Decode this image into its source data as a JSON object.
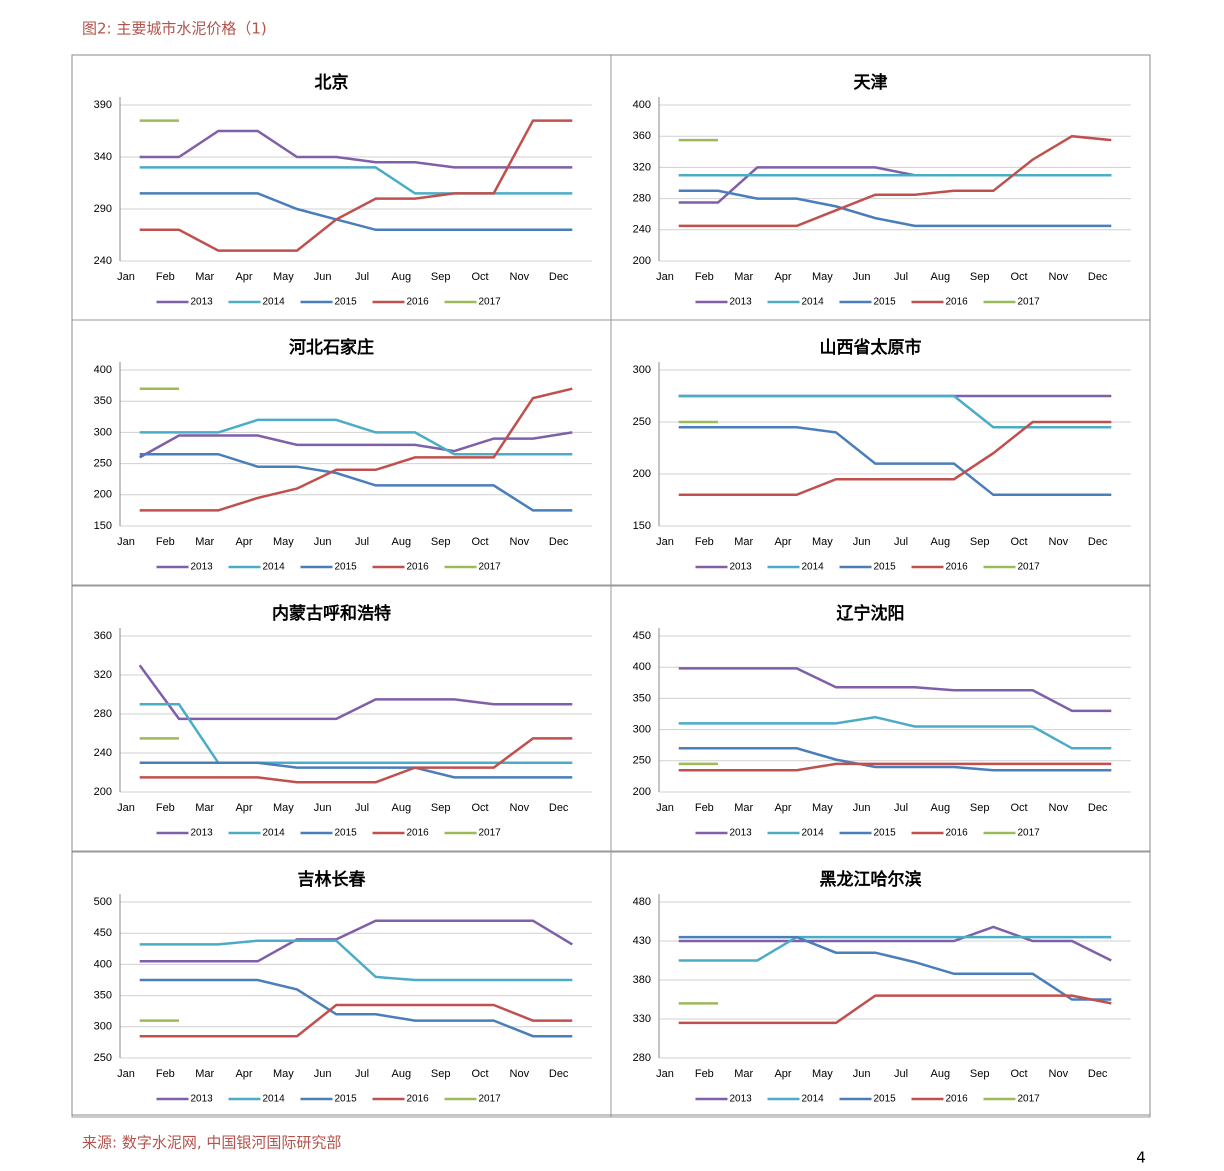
{
  "header": "图2: 主要城市水泥价格（1)",
  "footer": "来源: 数字水泥网, 中国银河国际研究部",
  "page_number": "4",
  "chart_data": [
    {
      "type": "line",
      "title": "北京",
      "categories": [
        "Jan",
        "Feb",
        "Mar",
        "Apr",
        "May",
        "Jun",
        "Jul",
        "Aug",
        "Sep",
        "Oct",
        "Nov",
        "Dec"
      ],
      "ylim": [
        240,
        390
      ],
      "yticks": [
        240,
        290,
        340,
        390
      ],
      "grid": true,
      "legend": "bottom",
      "series": [
        {
          "name": "2013",
          "color": "#7f5fa8",
          "values": [
            340,
            340,
            365,
            365,
            340,
            340,
            335,
            335,
            330,
            330,
            330,
            330
          ]
        },
        {
          "name": "2014",
          "color": "#4bacc6",
          "values": [
            330,
            330,
            330,
            330,
            330,
            330,
            330,
            305,
            305,
            305,
            305,
            305
          ]
        },
        {
          "name": "2015",
          "color": "#4a7ebb",
          "values": [
            305,
            305,
            305,
            305,
            290,
            280,
            270,
            270,
            270,
            270,
            270,
            270
          ]
        },
        {
          "name": "2016",
          "color": "#c0504d",
          "values": [
            270,
            270,
            250,
            250,
            250,
            280,
            300,
            300,
            305,
            305,
            375,
            375
          ]
        },
        {
          "name": "2017",
          "color": "#9bbb59",
          "values": [
            375,
            375,
            null,
            null,
            null,
            null,
            null,
            null,
            null,
            null,
            null,
            null
          ]
        }
      ]
    },
    {
      "type": "line",
      "title": "天津",
      "categories": [
        "Jan",
        "Feb",
        "Mar",
        "Apr",
        "May",
        "Jun",
        "Jul",
        "Aug",
        "Sep",
        "Oct",
        "Nov",
        "Dec"
      ],
      "ylim": [
        200,
        400
      ],
      "yticks": [
        200,
        240,
        280,
        320,
        360,
        400
      ],
      "grid": true,
      "legend": "bottom",
      "series": [
        {
          "name": "2013",
          "color": "#7f5fa8",
          "values": [
            275,
            275,
            320,
            320,
            320,
            320,
            310,
            310,
            310,
            310,
            310,
            310
          ]
        },
        {
          "name": "2014",
          "color": "#4bacc6",
          "values": [
            310,
            310,
            310,
            310,
            310,
            310,
            310,
            310,
            310,
            310,
            310,
            310
          ]
        },
        {
          "name": "2015",
          "color": "#4a7ebb",
          "values": [
            290,
            290,
            280,
            280,
            270,
            255,
            245,
            245,
            245,
            245,
            245,
            245
          ]
        },
        {
          "name": "2016",
          "color": "#c0504d",
          "values": [
            245,
            245,
            245,
            245,
            265,
            285,
            285,
            290,
            290,
            330,
            360,
            355
          ]
        },
        {
          "name": "2017",
          "color": "#9bbb59",
          "values": [
            355,
            355,
            null,
            null,
            null,
            null,
            null,
            null,
            null,
            null,
            null,
            null
          ]
        }
      ]
    },
    {
      "type": "line",
      "title": "河北石家庄",
      "categories": [
        "Jan",
        "Feb",
        "Mar",
        "Apr",
        "May",
        "Jun",
        "Jul",
        "Aug",
        "Sep",
        "Oct",
        "Nov",
        "Dec"
      ],
      "ylim": [
        150,
        400
      ],
      "yticks": [
        150,
        200,
        250,
        300,
        350,
        400
      ],
      "grid": true,
      "legend": "bottom",
      "series": [
        {
          "name": "2013",
          "color": "#7f5fa8",
          "values": [
            260,
            295,
            295,
            295,
            280,
            280,
            280,
            280,
            270,
            290,
            290,
            300
          ]
        },
        {
          "name": "2014",
          "color": "#4bacc6",
          "values": [
            300,
            300,
            300,
            320,
            320,
            320,
            300,
            300,
            265,
            265,
            265,
            265
          ]
        },
        {
          "name": "2015",
          "color": "#4a7ebb",
          "values": [
            265,
            265,
            265,
            245,
            245,
            235,
            215,
            215,
            215,
            215,
            175,
            175
          ]
        },
        {
          "name": "2016",
          "color": "#c0504d",
          "values": [
            175,
            175,
            175,
            195,
            210,
            240,
            240,
            260,
            260,
            260,
            355,
            370
          ]
        },
        {
          "name": "2017",
          "color": "#9bbb59",
          "values": [
            370,
            370,
            null,
            null,
            null,
            null,
            null,
            null,
            null,
            null,
            null,
            null
          ]
        }
      ]
    },
    {
      "type": "line",
      "title": "山西省太原市",
      "categories": [
        "Jan",
        "Feb",
        "Mar",
        "Apr",
        "May",
        "Jun",
        "Jul",
        "Aug",
        "Sep",
        "Oct",
        "Nov",
        "Dec"
      ],
      "ylim": [
        150,
        300
      ],
      "yticks": [
        150,
        200,
        250,
        300
      ],
      "grid": true,
      "legend": "bottom",
      "series": [
        {
          "name": "2013",
          "color": "#7f5fa8",
          "values": [
            275,
            275,
            275,
            275,
            275,
            275,
            275,
            275,
            275,
            275,
            275,
            275
          ]
        },
        {
          "name": "2014",
          "color": "#4bacc6",
          "values": [
            275,
            275,
            275,
            275,
            275,
            275,
            275,
            275,
            245,
            245,
            245,
            245
          ]
        },
        {
          "name": "2015",
          "color": "#4a7ebb",
          "values": [
            245,
            245,
            245,
            245,
            240,
            210,
            210,
            210,
            180,
            180,
            180,
            180
          ]
        },
        {
          "name": "2016",
          "color": "#c0504d",
          "values": [
            180,
            180,
            180,
            180,
            195,
            195,
            195,
            195,
            220,
            250,
            250,
            250
          ]
        },
        {
          "name": "2017",
          "color": "#9bbb59",
          "values": [
            250,
            250,
            null,
            null,
            null,
            null,
            null,
            null,
            null,
            null,
            null,
            null
          ]
        }
      ]
    },
    {
      "type": "line",
      "title": "内蒙古呼和浩特",
      "categories": [
        "Jan",
        "Feb",
        "Mar",
        "Apr",
        "May",
        "Jun",
        "Jul",
        "Aug",
        "Sep",
        "Oct",
        "Nov",
        "Dec"
      ],
      "ylim": [
        200,
        360
      ],
      "yticks": [
        200,
        240,
        280,
        320,
        360
      ],
      "grid": true,
      "legend": "bottom",
      "series": [
        {
          "name": "2013",
          "color": "#7f5fa8",
          "values": [
            330,
            275,
            275,
            275,
            275,
            275,
            295,
            295,
            295,
            290,
            290,
            290
          ]
        },
        {
          "name": "2014",
          "color": "#4bacc6",
          "values": [
            290,
            290,
            230,
            230,
            230,
            230,
            230,
            230,
            230,
            230,
            230,
            230
          ]
        },
        {
          "name": "2015",
          "color": "#4a7ebb",
          "values": [
            230,
            230,
            230,
            230,
            225,
            225,
            225,
            225,
            215,
            215,
            215,
            215
          ]
        },
        {
          "name": "2016",
          "color": "#c0504d",
          "values": [
            215,
            215,
            215,
            215,
            210,
            210,
            210,
            225,
            225,
            225,
            255,
            255
          ]
        },
        {
          "name": "2017",
          "color": "#9bbb59",
          "values": [
            255,
            255,
            null,
            null,
            null,
            null,
            null,
            null,
            null,
            null,
            null,
            null
          ]
        }
      ]
    },
    {
      "type": "line",
      "title": "辽宁沈阳",
      "categories": [
        "Jan",
        "Feb",
        "Mar",
        "Apr",
        "May",
        "Jun",
        "Jul",
        "Aug",
        "Sep",
        "Oct",
        "Nov",
        "Dec"
      ],
      "ylim": [
        200,
        450
      ],
      "yticks": [
        200,
        250,
        300,
        350,
        400,
        450
      ],
      "grid": true,
      "legend": "bottom",
      "series": [
        {
          "name": "2013",
          "color": "#7f5fa8",
          "values": [
            398,
            398,
            398,
            398,
            368,
            368,
            368,
            363,
            363,
            363,
            330,
            330
          ]
        },
        {
          "name": "2014",
          "color": "#4bacc6",
          "values": [
            310,
            310,
            310,
            310,
            310,
            320,
            305,
            305,
            305,
            305,
            270,
            270
          ]
        },
        {
          "name": "2015",
          "color": "#4a7ebb",
          "values": [
            270,
            270,
            270,
            270,
            252,
            240,
            240,
            240,
            235,
            235,
            235,
            235
          ]
        },
        {
          "name": "2016",
          "color": "#c0504d",
          "values": [
            235,
            235,
            235,
            235,
            245,
            245,
            245,
            245,
            245,
            245,
            245,
            245
          ]
        },
        {
          "name": "2017",
          "color": "#9bbb59",
          "values": [
            245,
            245,
            null,
            null,
            null,
            null,
            null,
            null,
            null,
            null,
            null,
            null
          ]
        }
      ]
    },
    {
      "type": "line",
      "title": "吉林长春",
      "categories": [
        "Jan",
        "Feb",
        "Mar",
        "Apr",
        "May",
        "Jun",
        "Jul",
        "Aug",
        "Sep",
        "Oct",
        "Nov",
        "Dec"
      ],
      "ylim": [
        250,
        500
      ],
      "yticks": [
        250,
        300,
        350,
        400,
        450,
        500
      ],
      "grid": true,
      "legend": "bottom",
      "series": [
        {
          "name": "2013",
          "color": "#7f5fa8",
          "values": [
            405,
            405,
            405,
            405,
            440,
            440,
            470,
            470,
            470,
            470,
            470,
            432
          ]
        },
        {
          "name": "2014",
          "color": "#4bacc6",
          "values": [
            432,
            432,
            432,
            438,
            438,
            438,
            380,
            375,
            375,
            375,
            375,
            375
          ]
        },
        {
          "name": "2015",
          "color": "#4a7ebb",
          "values": [
            375,
            375,
            375,
            375,
            360,
            320,
            320,
            310,
            310,
            310,
            285,
            285
          ]
        },
        {
          "name": "2016",
          "color": "#c0504d",
          "values": [
            285,
            285,
            285,
            285,
            285,
            335,
            335,
            335,
            335,
            335,
            310,
            310
          ]
        },
        {
          "name": "2017",
          "color": "#9bbb59",
          "values": [
            310,
            310,
            null,
            null,
            null,
            null,
            null,
            null,
            null,
            null,
            null,
            null
          ]
        }
      ]
    },
    {
      "type": "line",
      "title": "黑龙江哈尔滨",
      "categories": [
        "Jan",
        "Feb",
        "Mar",
        "Apr",
        "May",
        "Jun",
        "Jul",
        "Aug",
        "Sep",
        "Oct",
        "Nov",
        "Dec"
      ],
      "ylim": [
        280,
        480
      ],
      "yticks": [
        280,
        330,
        380,
        430,
        480
      ],
      "grid": true,
      "legend": "bottom",
      "series": [
        {
          "name": "2013",
          "color": "#7f5fa8",
          "values": [
            430,
            430,
            430,
            430,
            430,
            430,
            430,
            430,
            448,
            430,
            430,
            405
          ]
        },
        {
          "name": "2014",
          "color": "#4bacc6",
          "values": [
            405,
            405,
            405,
            435,
            435,
            435,
            435,
            435,
            435,
            435,
            435,
            435
          ]
        },
        {
          "name": "2015",
          "color": "#4a7ebb",
          "values": [
            435,
            435,
            435,
            435,
            415,
            415,
            403,
            388,
            388,
            388,
            355,
            355
          ]
        },
        {
          "name": "2016",
          "color": "#c0504d",
          "values": [
            325,
            325,
            325,
            325,
            325,
            360,
            360,
            360,
            360,
            360,
            360,
            350
          ]
        },
        {
          "name": "2017",
          "color": "#9bbb59",
          "values": [
            350,
            350,
            null,
            null,
            null,
            null,
            null,
            null,
            null,
            null,
            null,
            null
          ]
        }
      ]
    }
  ]
}
